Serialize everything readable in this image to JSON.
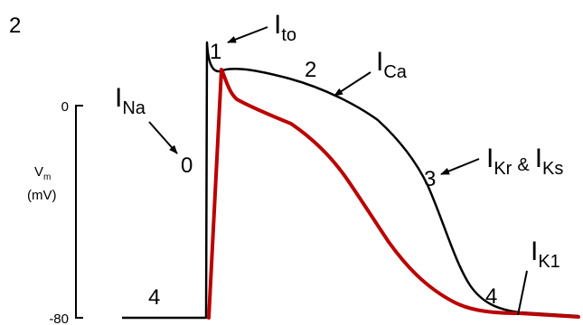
{
  "figure": {
    "panel_label": "2",
    "y_axis": {
      "label_line1": "V",
      "label_sub": "m",
      "label_line2": "(mV)",
      "tick_top": "0",
      "tick_bottom": "-80"
    },
    "phases": {
      "phase0": "0",
      "phase1": "1",
      "phase2": "2",
      "phase3": "3",
      "phase4_left": "4",
      "phase4_right": "4"
    },
    "currents": {
      "na": {
        "main": "I",
        "sub": "Na"
      },
      "to": {
        "main": "I",
        "sub": "to"
      },
      "ca": {
        "main": "I",
        "sub": "Ca"
      },
      "kr": {
        "main": "I",
        "sub": "Kr"
      },
      "amp": "&",
      "ks": {
        "main": "I",
        "sub": "Ks"
      },
      "k1": {
        "main": "I",
        "sub": "K1"
      }
    },
    "colors": {
      "black_trace": "#000000",
      "red_trace": "#bb0000"
    }
  }
}
